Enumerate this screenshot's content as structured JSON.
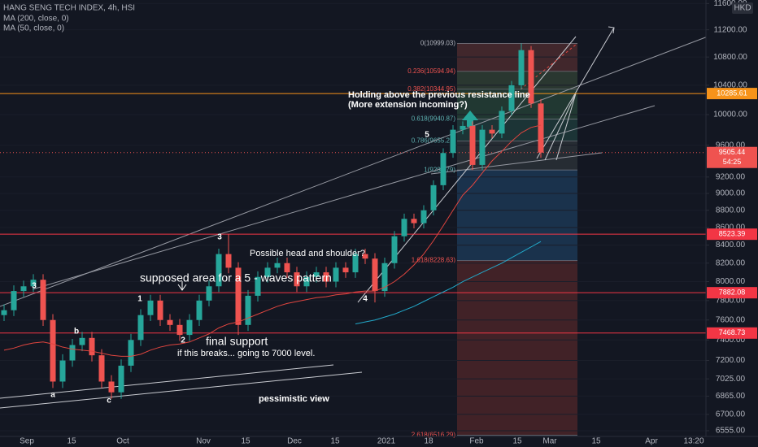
{
  "chart_data": {
    "type": "candlestick",
    "title": "HANG SENG TECH INDEX, 4h, HSI",
    "currency": "HKD",
    "log_scale": true,
    "grid": true,
    "ylim": [
      6505,
      11655
    ],
    "yticks": [
      {
        "value": 11600,
        "label": "11600.00"
      },
      {
        "value": 11200,
        "label": "11200.00"
      },
      {
        "value": 10800,
        "label": "10800.00"
      },
      {
        "value": 10400,
        "label": "10400.00"
      },
      {
        "value": 10000,
        "label": "10000.00"
      },
      {
        "value": 9600,
        "label": "9600.00"
      },
      {
        "value": 9200,
        "label": "9200.00"
      },
      {
        "value": 9000,
        "label": "9000.00"
      },
      {
        "value": 8800,
        "label": "8800.00"
      },
      {
        "value": 8600,
        "label": "8600.00"
      },
      {
        "value": 8400,
        "label": "8400.00"
      },
      {
        "value": 8200,
        "label": "8200.00"
      },
      {
        "value": 8000,
        "label": "8000.00"
      },
      {
        "value": 7800,
        "label": "7800.00"
      },
      {
        "value": 7600,
        "label": "7600.00"
      },
      {
        "value": 7400,
        "label": "7400.00"
      },
      {
        "value": 7200,
        "label": "7200.00"
      },
      {
        "value": 7025,
        "label": "7025.00"
      },
      {
        "value": 6865,
        "label": "6865.00"
      },
      {
        "value": 6700,
        "label": "6700.00"
      },
      {
        "value": 6555,
        "label": "6555.00"
      }
    ],
    "time_labels": [
      "Sep",
      "15",
      "Oct",
      "Nov",
      "15",
      "Dec",
      "15",
      "2021",
      "18",
      "Feb",
      "15",
      "Mar",
      "15",
      "Apr",
      "13:20"
    ],
    "up_color": "#26a69a",
    "down_color": "#ef5350",
    "open": [
      7650,
      7700,
      7900,
      7950,
      8020,
      7600,
      7000,
      7200,
      7350,
      7420,
      7250,
      7000,
      6900,
      7150,
      7400,
      7650,
      7800,
      7600,
      7550,
      7450,
      7600,
      7800,
      7950,
      8300,
      8150,
      7550,
      7850,
      8050,
      8150,
      8200,
      8100,
      7950,
      8050,
      8100,
      8000,
      8150,
      8100,
      8300,
      8250,
      7900,
      8200,
      8500,
      8700,
      8650,
      8800,
      9100,
      9500,
      9800,
      9850,
      9350,
      9800,
      9750,
      10050,
      10400,
      10900,
      10150
    ],
    "high": [
      7760,
      7960,
      8010,
      8080,
      8080,
      7660,
      7260,
      7410,
      7480,
      7480,
      7310,
      7060,
      7210,
      7460,
      7710,
      7860,
      7860,
      7660,
      7610,
      7660,
      7860,
      8010,
      8360,
      8520,
      8210,
      7910,
      8110,
      8210,
      8260,
      8260,
      8160,
      8110,
      8160,
      8160,
      8210,
      8210,
      8360,
      8360,
      8310,
      8260,
      8560,
      8760,
      8760,
      8860,
      9160,
      9560,
      9860,
      9910,
      9910,
      9860,
      9860,
      10110,
      10460,
      10999,
      10960,
      10210
    ],
    "low": [
      7590,
      7640,
      7840,
      7890,
      7540,
      6940,
      6940,
      7140,
      7290,
      7190,
      6940,
      6840,
      6840,
      7090,
      7340,
      7590,
      7540,
      7490,
      7390,
      7390,
      7540,
      7740,
      7890,
      8090,
      7450,
      7490,
      7790,
      7990,
      8090,
      8040,
      7890,
      7890,
      7990,
      7940,
      7940,
      8040,
      8040,
      8190,
      7780,
      7840,
      8140,
      8440,
      8590,
      8590,
      8740,
      9040,
      9440,
      9740,
      9286,
      9290,
      9690,
      9690,
      9990,
      10340,
      10090,
      9440
    ],
    "close": [
      7700,
      7900,
      7950,
      8020,
      7600,
      7000,
      7200,
      7350,
      7420,
      7250,
      7000,
      6900,
      7150,
      7400,
      7650,
      7800,
      7600,
      7550,
      7450,
      7600,
      7800,
      7950,
      8300,
      8150,
      7550,
      7850,
      8050,
      8150,
      8200,
      8100,
      7950,
      8050,
      8100,
      8000,
      8150,
      8100,
      8300,
      8250,
      7900,
      8200,
      8500,
      8700,
      8650,
      8800,
      9100,
      9500,
      9800,
      9850,
      9350,
      9800,
      9750,
      10050,
      10400,
      10900,
      10150,
      9505
    ],
    "series": [
      {
        "name": "MA (200, close, 0)",
        "color": "#22a8c9",
        "values": [
          null,
          null,
          null,
          null,
          null,
          null,
          null,
          null,
          null,
          null,
          null,
          null,
          null,
          null,
          null,
          null,
          null,
          null,
          null,
          null,
          null,
          null,
          null,
          null,
          null,
          null,
          null,
          null,
          null,
          null,
          null,
          null,
          null,
          null,
          null,
          null,
          7560,
          7580,
          7600,
          7630,
          7660,
          7700,
          7740,
          7790,
          7840,
          7890,
          7940,
          8000,
          8050,
          8100,
          8150,
          8200,
          8260,
          8320,
          8380,
          8440
        ]
      },
      {
        "name": "MA (50, close, 0)",
        "color": "#e0453f",
        "values": [
          7300,
          7320,
          7350,
          7370,
          7380,
          7360,
          7330,
          7310,
          7300,
          7290,
          7270,
          7250,
          7240,
          7240,
          7260,
          7300,
          7330,
          7350,
          7360,
          7380,
          7420,
          7460,
          7520,
          7560,
          7580,
          7620,
          7660,
          7700,
          7740,
          7770,
          7790,
          7810,
          7830,
          7840,
          7860,
          7870,
          7890,
          7900,
          7900,
          7940,
          8000,
          8080,
          8180,
          8300,
          8450,
          8620,
          8800,
          8980,
          9100,
          9250,
          9400,
          9520,
          9650,
          9760,
          9830,
          9860
        ]
      }
    ],
    "levels": [
      {
        "value": 10285.61,
        "color": "#f7931a"
      },
      {
        "value": 8523.39,
        "color": "#f23645"
      },
      {
        "value": 7882.08,
        "color": "#f23645"
      },
      {
        "value": 7468.73,
        "color": "#f23645"
      }
    ],
    "last_price": 9505.44,
    "countdown": "54:25",
    "fib_levels": [
      {
        "value": 10999.03,
        "label": "0(10999.03)"
      },
      {
        "value": 10594.94,
        "label": "0.236(10594.94)"
      },
      {
        "value": 10344.95,
        "label": "0.382(10344.95)"
      },
      {
        "value": 9940.87,
        "label": "0.618(9940.87)"
      },
      {
        "value": 9655.21,
        "label": "0.786(9655.21)"
      },
      {
        "value": 9286.79,
        "label": "1(9286.79)"
      },
      {
        "value": 8228.63,
        "label": "1.618(8228.63)"
      },
      {
        "value": 6516.29,
        "label": "2.618(6516.29)"
      }
    ],
    "fib_colors": [
      "#4a2a2e",
      "#2f3d33",
      "#243e35",
      "#1f3a3a",
      "#2a3036",
      "#1c3754",
      "#4a2428"
    ],
    "annotations": {
      "resistance": "Holding above the previous resistance line",
      "extension": "(More extension incoming?)",
      "head_shoulder": "Possible head and shoulder?",
      "waves_area": "supposed area for a 5 - waves pattern",
      "final_support": "final support",
      "breaks": "if this breaks... going to 7000 level.",
      "pessimistic": "pessimistic view"
    },
    "wave_labels": [
      "3",
      "a",
      "b",
      "c",
      "1",
      "2",
      "3",
      "4",
      "5"
    ]
  }
}
